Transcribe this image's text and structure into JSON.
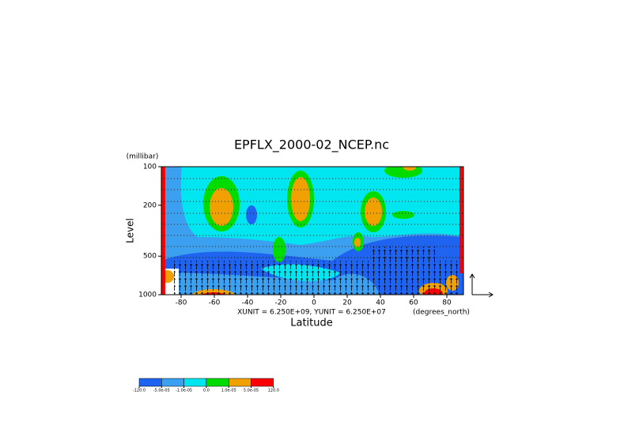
{
  "chart_data": {
    "type": "contour",
    "title": "EPFLX_2000-02_NCEP.nc",
    "x_label": "Latitude",
    "x_unit": "(degrees_north)",
    "y_label": "Level",
    "y_unit": "(millibar)",
    "annotation": "XUNIT = 6.250E+09, YUNIT = 6.250E+07",
    "xlim": [
      -90,
      90
    ],
    "xticks": [
      -80,
      -60,
      -40,
      -20,
      0,
      20,
      40,
      60,
      80
    ],
    "ylim": [
      1000,
      100
    ],
    "yticks": [
      100,
      200,
      500,
      1000
    ],
    "y_log": true,
    "colorbar": {
      "colors": [
        "#1e64f0",
        "#3ca0f0",
        "#00e6f0",
        "#00dc00",
        "#f0a000",
        "#fa0000"
      ],
      "levels": [
        {
          "value": -120,
          "label": "-120.0"
        },
        {
          "value": -5e-05,
          "label": "-5.0e-05"
        },
        {
          "value": -1e-05,
          "label": "-1.0e-05"
        },
        {
          "value": 0,
          "label": "0.0"
        },
        {
          "value": 1e-05,
          "label": "1.0e-05"
        },
        {
          "value": 5e-05,
          "label": "5.0e-05"
        },
        {
          "value": 120,
          "label": "120.0"
        }
      ]
    }
  }
}
